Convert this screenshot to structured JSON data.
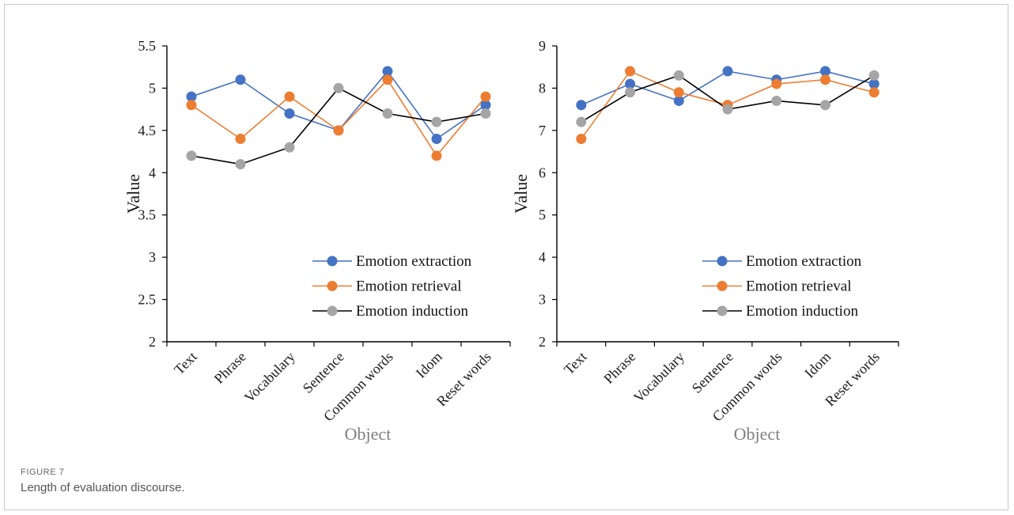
{
  "figure": {
    "label": "FIGURE 7",
    "caption": "Length of evaluation discourse."
  },
  "chart_data": [
    {
      "type": "line",
      "title": "",
      "xlabel": "Object",
      "ylabel": "Value",
      "ylim": [
        2,
        5.5
      ],
      "yticks": [
        "2",
        "2.5",
        "3",
        "3.5",
        "4",
        "4.5",
        "5",
        "5.5"
      ],
      "categories": [
        "Text",
        "Phrase",
        "Vocabulary",
        "Sentence",
        "Common words",
        "Idom",
        "Reset words"
      ],
      "legend_position": "lower-right",
      "grid": false,
      "series": [
        {
          "name": "Emotion extraction",
          "values": [
            4.9,
            5.1,
            4.7,
            4.5,
            5.2,
            4.4,
            4.8
          ],
          "marker_color": "#4472c4",
          "line_color": "#4472c4"
        },
        {
          "name": "Emotion retrieval",
          "values": [
            4.8,
            4.4,
            4.9,
            4.5,
            5.1,
            4.2,
            4.9
          ],
          "marker_color": "#ed7d31",
          "line_color": "#ed7d31"
        },
        {
          "name": "Emotion induction",
          "values": [
            4.2,
            4.1,
            4.3,
            5.0,
            4.7,
            4.6,
            4.7
          ],
          "marker_color": "#a5a5a5",
          "line_color": "#000000"
        }
      ]
    },
    {
      "type": "line",
      "title": "",
      "xlabel": "Object",
      "ylabel": "Value",
      "ylim": [
        2,
        9
      ],
      "yticks": [
        "2",
        "3",
        "4",
        "5",
        "6",
        "7",
        "8",
        "9"
      ],
      "categories": [
        "Text",
        "Phrase",
        "Vocabulary",
        "Sentence",
        "Common words",
        "Idom",
        "Reset words"
      ],
      "legend_position": "lower-right",
      "grid": false,
      "series": [
        {
          "name": "Emotion extraction",
          "values": [
            7.6,
            8.1,
            7.7,
            8.4,
            8.2,
            8.4,
            8.1
          ],
          "marker_color": "#4472c4",
          "line_color": "#4472c4"
        },
        {
          "name": "Emotion retrieval",
          "values": [
            6.8,
            8.4,
            7.9,
            7.6,
            8.1,
            8.2,
            7.9
          ],
          "marker_color": "#ed7d31",
          "line_color": "#ed7d31"
        },
        {
          "name": "Emotion induction",
          "values": [
            7.2,
            7.9,
            8.3,
            7.5,
            7.7,
            7.6,
            8.3
          ],
          "marker_color": "#a5a5a5",
          "line_color": "#000000"
        }
      ]
    }
  ]
}
